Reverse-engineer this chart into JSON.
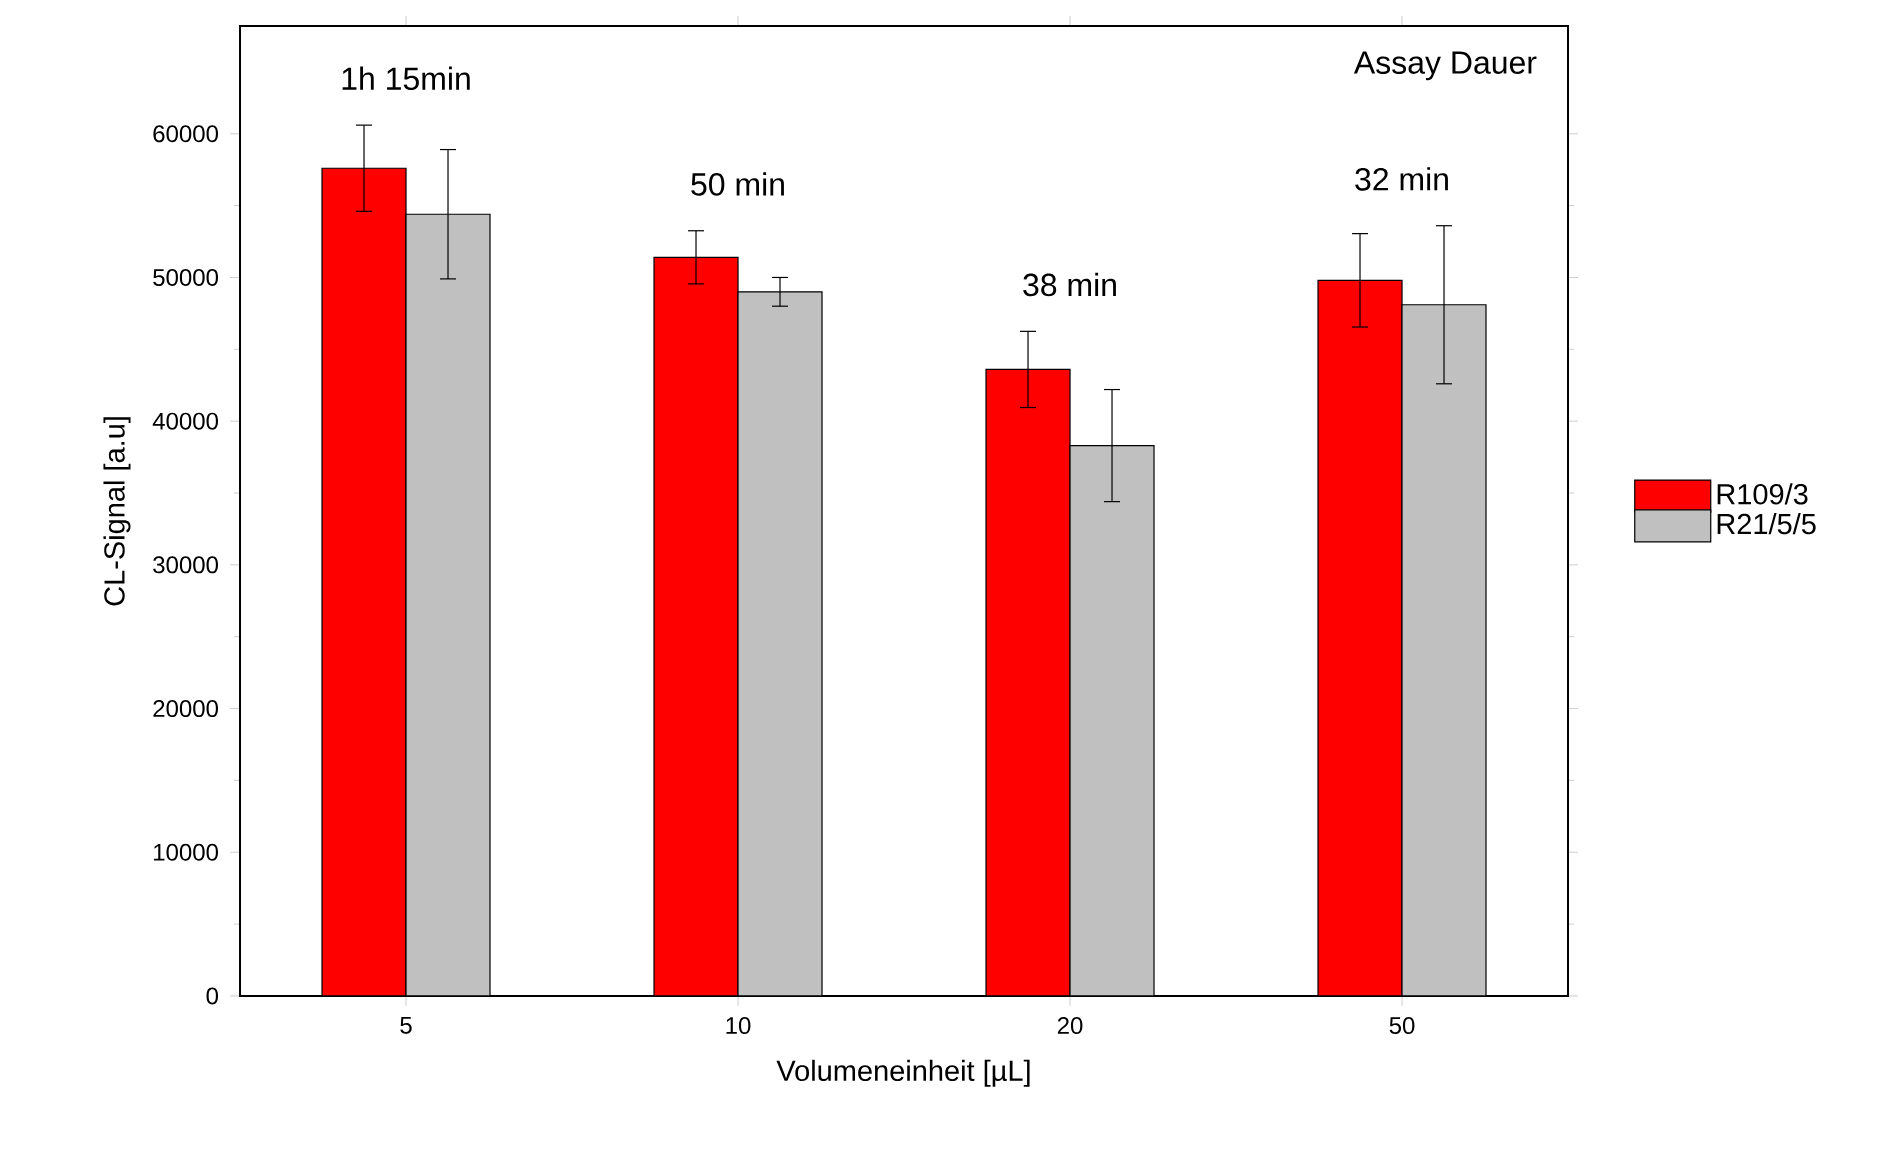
{
  "chart_data": {
    "type": "bar",
    "xlabel": "Volumeneinheit [µL]",
    "ylabel": "CL-Signal [a.u]",
    "categories": [
      "5",
      "10",
      "20",
      "50"
    ],
    "series": [
      {
        "name": "R109/3",
        "color": "#ff0000",
        "values": [
          57600,
          51400,
          43600,
          49800
        ],
        "errors": [
          3000,
          1850,
          2650,
          3250
        ]
      },
      {
        "name": "R21/5/5",
        "color": "#c0c0c0",
        "values": [
          54400,
          49000,
          38300,
          48100
        ],
        "errors": [
          4500,
          1000,
          3900,
          5500
        ]
      }
    ],
    "ylim": [
      0,
      67500
    ],
    "yticks": [
      0,
      10000,
      20000,
      30000,
      40000,
      50000,
      60000
    ],
    "annotations": [
      "1h 15min",
      "50 min",
      "38 min",
      "32 min",
      "Assay Dauer"
    ],
    "legend": "right",
    "grid": false
  }
}
